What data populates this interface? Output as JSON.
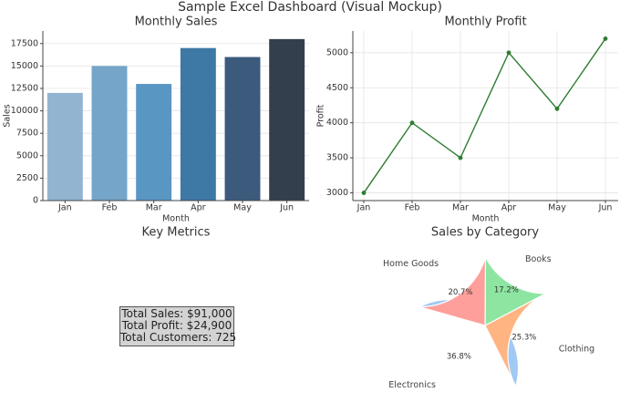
{
  "suptitle": "Sample Excel Dashboard (Visual Mockup)",
  "chart_data": [
    {
      "type": "bar",
      "title": "Monthly Sales",
      "xlabel": "Month",
      "ylabel": "Sales",
      "categories": [
        "Jan",
        "Feb",
        "Mar",
        "Apr",
        "May",
        "Jun"
      ],
      "values": [
        12000,
        15000,
        13000,
        17000,
        16000,
        18000
      ],
      "ylim": [
        0,
        18900
      ],
      "yticks": [
        0,
        2500,
        5000,
        7500,
        10000,
        12500,
        15000,
        17500
      ],
      "grid": true,
      "colors": [
        "#93b4d0",
        "#75a5c8",
        "#5a96c2",
        "#3e78a5",
        "#3c5a7c",
        "#343f4d"
      ]
    },
    {
      "type": "line",
      "title": "Monthly Profit",
      "xlabel": "Month",
      "ylabel": "Profit",
      "categories": [
        "Jan",
        "Feb",
        "Mar",
        "Apr",
        "May",
        "Jun"
      ],
      "values": [
        3000,
        4000,
        3500,
        5000,
        4200,
        5200
      ],
      "ylim": [
        2890,
        5310
      ],
      "yticks": [
        3000,
        3500,
        4000,
        4500,
        5000
      ],
      "grid": true,
      "color": "#2e7d32"
    },
    {
      "type": "pie",
      "title": "Sales by Category",
      "labels": [
        "Electronics",
        "Clothing",
        "Books",
        "Home Goods"
      ],
      "values": [
        36.8,
        25.3,
        17.2,
        20.7
      ],
      "pct_labels": [
        "36.8%",
        "25.3%",
        "17.2%",
        "20.7%"
      ],
      "colors": [
        "#a1c9f4",
        "#ffb482",
        "#8de5a1",
        "#ff9f9b"
      ]
    }
  ],
  "metrics": {
    "title": "Key Metrics",
    "lines": [
      "Total Sales: $91,000",
      "Total Profit: $24,900",
      "Total Customers: 725"
    ]
  }
}
